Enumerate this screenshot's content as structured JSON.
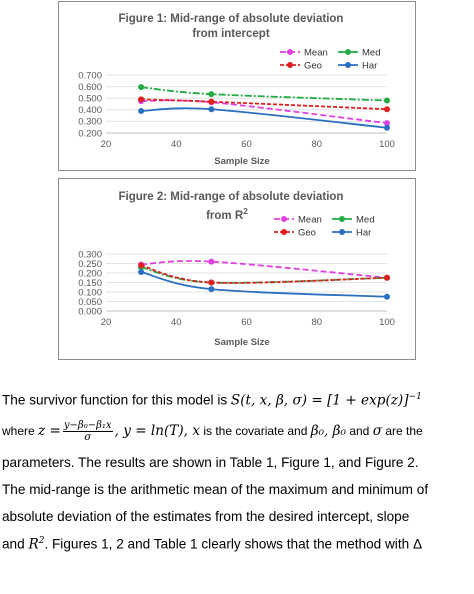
{
  "chart_data": [
    {
      "type": "line",
      "title": "Figure 1: Mid-range of absolute deviation",
      "title_line2": "from intercept",
      "xlabel": "Sample Size",
      "ylabel": "",
      "xlim": [
        20,
        100
      ],
      "ylim": [
        0.2,
        0.7
      ],
      "x_ticks": [
        "20",
        "40",
        "60",
        "80",
        "100"
      ],
      "y_ticks": [
        "0.200",
        "0.300",
        "0.400",
        "0.500",
        "0.600",
        "0.700"
      ],
      "legend_position": "top-right",
      "series": [
        {
          "name": "Mean",
          "color": "#e040e0",
          "x": [
            30,
            50,
            100
          ],
          "y": [
            0.475,
            0.465,
            0.285
          ]
        },
        {
          "name": "Med",
          "color": "#22aa44",
          "x": [
            30,
            50,
            100
          ],
          "y": [
            0.595,
            0.535,
            0.48
          ]
        },
        {
          "name": "Geo",
          "color": "#e02020",
          "x": [
            30,
            50,
            100
          ],
          "y": [
            0.49,
            0.47,
            0.405
          ]
        },
        {
          "name": "Har",
          "color": "#2a6fc0",
          "x": [
            30,
            50,
            100
          ],
          "y": [
            0.39,
            0.405,
            0.245
          ]
        }
      ]
    },
    {
      "type": "line",
      "title": "Figure 2: Mid-range of absolute deviation",
      "title_line2": "from R",
      "title_sup": "2",
      "xlabel": "Sample Size",
      "ylabel": "",
      "xlim": [
        20,
        100
      ],
      "ylim": [
        0,
        0.3
      ],
      "x_ticks": [
        "20",
        "40",
        "60",
        "80",
        "100"
      ],
      "y_ticks": [
        "0.000",
        "0.050",
        "0.100",
        "0.150",
        "0.200",
        "0.250",
        "0.300"
      ],
      "legend_position": "top-right",
      "series": [
        {
          "name": "Mean",
          "color": "#e040e0",
          "x": [
            30,
            50,
            100
          ],
          "y": [
            0.245,
            0.26,
            0.175
          ]
        },
        {
          "name": "Med",
          "color": "#22aa44",
          "x": [
            30,
            50,
            100
          ],
          "y": [
            0.23,
            0.15,
            0.175
          ]
        },
        {
          "name": "Geo",
          "color": "#e02020",
          "x": [
            30,
            50,
            100
          ],
          "y": [
            0.24,
            0.15,
            0.175
          ]
        },
        {
          "name": "Har",
          "color": "#2a6fc0",
          "x": [
            30,
            50,
            100
          ],
          "y": [
            0.205,
            0.115,
            0.075
          ]
        }
      ]
    }
  ],
  "text": {
    "l1_a": "The  survivor  function  for  this  model  is ",
    "l1_eq": "S(t, x, β, σ) = [1 + exp(z)]",
    "l1_sup": "−1",
    "l2_a": "where  ",
    "l2_z": "z =",
    "l2_num": "y−β₀−β₁x",
    "l2_den": "σ",
    "l2_b": ", y = ln(T), x",
    "l2_c": "  is the covariate and ",
    "l2_b0": "β₀, β₀",
    "l2_d": " and ",
    "l2_sigma": "σ",
    "l2_e": " are the",
    "l3": "parameters. The results are shown in Table 1, Figure 1, and Figure 2.",
    "l4": "The mid-range is the arithmetic mean of the maximum and minimum of",
    "l5": "absolute deviation of the estimates from the desired intercept, slope",
    "l6_a": "and ",
    "l6_r": "R",
    "l6_sup": "2",
    "l6_b": ". Figures 1, 2 and Table 1 clearly shows that the method with  Δ"
  }
}
